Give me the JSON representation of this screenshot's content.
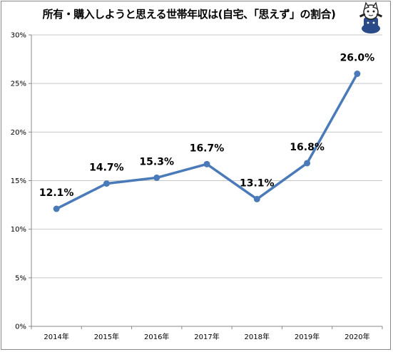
{
  "chart_data": {
    "type": "line",
    "title": "所有・購入しようと思える世帯年収は(自宅、「思えず」の割合)",
    "categories": [
      "2014年",
      "2015年",
      "2016年",
      "2017年",
      "2018年",
      "2019年",
      "2020年"
    ],
    "series": [
      {
        "values": [
          12.1,
          14.7,
          15.3,
          16.7,
          13.1,
          16.8,
          26.0
        ],
        "labels": [
          "12.1%",
          "14.7%",
          "15.3%",
          "16.7%",
          "13.1%",
          "16.8%",
          "26.0%"
        ],
        "color": "#4a7ab8"
      }
    ],
    "ylim": [
      0,
      30
    ],
    "yticks": [
      0,
      5,
      10,
      15,
      20,
      25,
      30
    ],
    "ytick_labels": [
      "0%",
      "5%",
      "10%",
      "15%",
      "20%",
      "25%",
      "30%"
    ],
    "grid": true,
    "legend": "none"
  },
  "colors": {
    "line": "#4a7ab8",
    "grid": "#c8c8c8",
    "frame": "#888888"
  },
  "mascot_icon": "cat-mascot-icon"
}
